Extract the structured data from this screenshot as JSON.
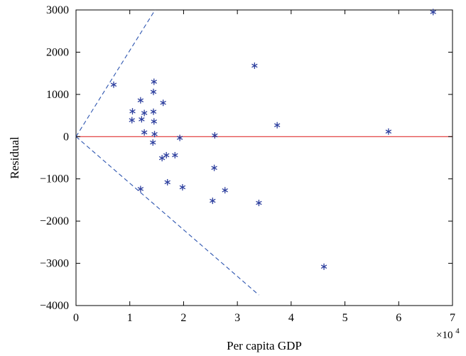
{
  "chart_data": {
    "type": "scatter",
    "xlabel": "Per capita GDP",
    "ylabel": "Residual",
    "x_multiplier_base": "×10",
    "x_multiplier_exp": "4",
    "xlim": [
      0,
      7
    ],
    "ylim": [
      -4000,
      3000
    ],
    "x_ticks": [
      0,
      1,
      2,
      3,
      4,
      5,
      6,
      7
    ],
    "y_ticks": [
      3000,
      2000,
      1000,
      0,
      -1000,
      -2000,
      -3000,
      -4000
    ],
    "x_tick_labels": [
      "0",
      "1",
      "2",
      "3",
      "4",
      "5",
      "6",
      "7"
    ],
    "y_tick_labels": [
      "3000",
      "2000",
      "1000",
      "0",
      "−1000",
      "−2000",
      "−3000",
      "−4000"
    ],
    "grid": false,
    "marker": "asterisk",
    "colors": {
      "points": "#2d3f9e",
      "zero_line": "#e03030",
      "bounds": "#2d55b0",
      "axes": "#000000"
    },
    "reference_lines": [
      {
        "kind": "solid",
        "color": "#e03030",
        "x": [
          0,
          7
        ],
        "y": [
          0,
          0
        ]
      },
      {
        "kind": "dashed",
        "color": "#2d55b0",
        "x": [
          0,
          1.47
        ],
        "y": [
          0,
          3000
        ]
      },
      {
        "kind": "dashed",
        "color": "#2d55b0",
        "x": [
          0,
          3.4
        ],
        "y": [
          0,
          -3750
        ]
      }
    ],
    "points": [
      [
        0.7,
        1230
      ],
      [
        1.05,
        600
      ],
      [
        1.04,
        390
      ],
      [
        1.2,
        860
      ],
      [
        1.22,
        410
      ],
      [
        1.27,
        560
      ],
      [
        1.27,
        100
      ],
      [
        1.45,
        1300
      ],
      [
        1.44,
        1060
      ],
      [
        1.44,
        590
      ],
      [
        1.45,
        360
      ],
      [
        1.46,
        60
      ],
      [
        1.43,
        -140
      ],
      [
        1.62,
        800
      ],
      [
        1.6,
        -510
      ],
      [
        1.68,
        -440
      ],
      [
        1.84,
        -440
      ],
      [
        1.7,
        -1080
      ],
      [
        1.2,
        -1240
      ],
      [
        1.93,
        -30
      ],
      [
        1.98,
        -1200
      ],
      [
        2.58,
        30
      ],
      [
        2.57,
        -740
      ],
      [
        2.54,
        -1520
      ],
      [
        2.77,
        -1270
      ],
      [
        3.32,
        1680
      ],
      [
        3.4,
        -1570
      ],
      [
        3.74,
        270
      ],
      [
        4.61,
        -3080
      ],
      [
        5.81,
        120
      ],
      [
        6.64,
        2950
      ]
    ]
  }
}
